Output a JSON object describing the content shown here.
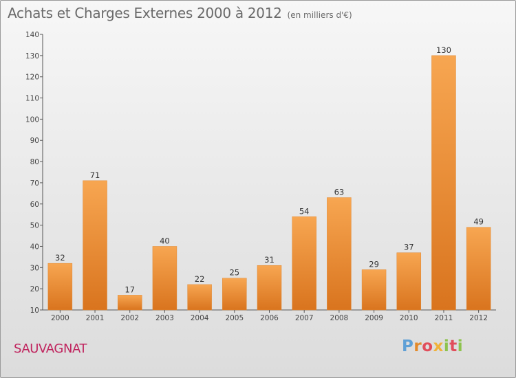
{
  "header": {
    "title": "Achats et Charges Externes 2000 à 2012",
    "unit": "(en milliers d'€)"
  },
  "footer": {
    "commune": "SAUVAGNAT",
    "logo_letters": [
      "P",
      "r",
      "o",
      "x",
      "i",
      "t",
      "i"
    ]
  },
  "colors": {
    "bar_light": "#f7a651",
    "bar_dark": "#d9741e",
    "commune_text": "#c0245e"
  },
  "chart_data": {
    "type": "bar",
    "title": "Achats et Charges Externes 2000 à 2012",
    "subtitle": "(en milliers d'€)",
    "xlabel": "",
    "ylabel": "",
    "categories": [
      "2000",
      "2001",
      "2002",
      "2003",
      "2004",
      "2005",
      "2006",
      "2007",
      "2008",
      "2009",
      "2010",
      "2011",
      "2012"
    ],
    "values": [
      32,
      71,
      17,
      40,
      22,
      25,
      31,
      54,
      63,
      29,
      37,
      130,
      49
    ],
    "ylim": [
      10,
      140
    ],
    "yticks": [
      10,
      20,
      30,
      40,
      50,
      60,
      70,
      80,
      90,
      100,
      110,
      120,
      130,
      140
    ],
    "grid": false,
    "legend": "none",
    "data_labels": true
  }
}
